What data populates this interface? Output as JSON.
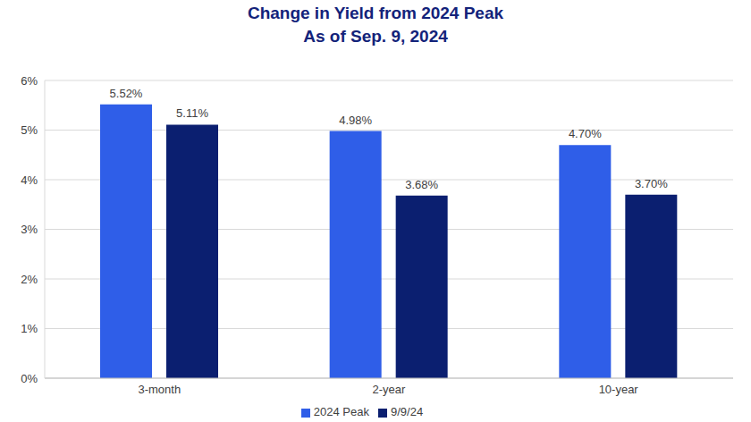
{
  "chart_data": {
    "type": "bar",
    "title": "Change in Yield from 2024 Peak",
    "subtitle": "As of Sep. 9, 2024",
    "categories": [
      "3-month",
      "2-year",
      "10-year"
    ],
    "series": [
      {
        "name": "2024 Peak",
        "color": "#2f5ee8",
        "values": [
          5.52,
          4.98,
          4.7
        ],
        "value_labels": [
          "5.52%",
          "4.98%",
          "4.70%"
        ]
      },
      {
        "name": "9/9/24",
        "color": "#0b1f70",
        "values": [
          5.11,
          3.68,
          3.7
        ],
        "value_labels": [
          "5.11%",
          "3.68%",
          "3.70%"
        ]
      }
    ],
    "ylim": [
      0,
      6
    ],
    "yticks": [
      {
        "value": 0,
        "label": "0%"
      },
      {
        "value": 1,
        "label": "1%"
      },
      {
        "value": 2,
        "label": "2%"
      },
      {
        "value": 3,
        "label": "3%"
      },
      {
        "value": 4,
        "label": "4%"
      },
      {
        "value": 5,
        "label": "5%"
      },
      {
        "value": 6,
        "label": "6%"
      }
    ],
    "grid": true,
    "data_labels": true,
    "legend": "bottom"
  }
}
